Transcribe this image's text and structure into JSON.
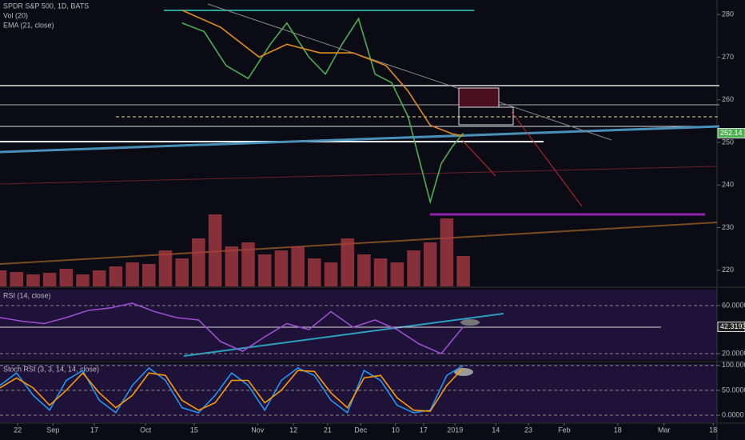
{
  "chart_data": [
    {
      "type": "line",
      "title": "SPDR S&P 500, 1D, BATS",
      "last_price": 252.14,
      "xlim": [
        0,
        130
      ],
      "ylim": [
        216.2,
        283.4
      ],
      "xticks": [
        {
          "value": 3.2,
          "label": "22"
        },
        {
          "value": 9.6,
          "label": "Sep"
        },
        {
          "value": 17.1,
          "label": "17"
        },
        {
          "value": 26.4,
          "label": "Oct"
        },
        {
          "value": 35.2,
          "label": "15"
        },
        {
          "value": 46.7,
          "label": "Nov"
        },
        {
          "value": 53.2,
          "label": "12"
        },
        {
          "value": 59.4,
          "label": "21"
        },
        {
          "value": 65.4,
          "label": "Dec"
        },
        {
          "value": 71.7,
          "label": "10"
        },
        {
          "value": 76.8,
          "label": "17"
        },
        {
          "value": 82.5,
          "label": "2019"
        },
        {
          "value": 89.9,
          "label": "14"
        },
        {
          "value": 95.8,
          "label": "23"
        },
        {
          "value": 102.3,
          "label": "Feb"
        },
        {
          "value": 112,
          "label": "18"
        },
        {
          "value": 120.4,
          "label": "Mar"
        },
        {
          "value": 129.3,
          "label": "18"
        }
      ],
      "yticks": [
        220,
        230,
        240,
        250,
        260,
        270,
        280
      ],
      "series": [
        {
          "color": "#4caf50",
          "x": [
            33,
            37,
            41,
            45,
            49,
            52,
            56,
            59,
            62,
            65,
            68,
            71,
            74,
            76,
            78,
            80,
            82,
            84
          ],
          "values": [
            278,
            276,
            268,
            265,
            273,
            278,
            270,
            266,
            273,
            279,
            266,
            264,
            256,
            246,
            236,
            245,
            249,
            252.14
          ]
        },
        {
          "name": "EMA (21, close)",
          "color": "#e08a1e",
          "x": [
            33,
            40,
            47,
            52,
            58,
            64,
            70,
            74,
            78,
            82,
            84
          ],
          "values": [
            281,
            277,
            270,
            273,
            271,
            271,
            268,
            262,
            254,
            252,
            251.5
          ]
        }
      ]
    },
    {
      "type": "bar",
      "title": "Vol (20)",
      "xlim": [
        0,
        130
      ],
      "ylim": [
        0,
        100
      ],
      "color": "#a83a44",
      "x": [
        0,
        3,
        6,
        9,
        12,
        15,
        18,
        21,
        24,
        27,
        30,
        33,
        36,
        39,
        42,
        45,
        48,
        51,
        54,
        57,
        60,
        63,
        66,
        69,
        72,
        75,
        78,
        81,
        84
      ],
      "values": [
        20,
        18,
        15,
        17,
        22,
        15,
        20,
        25,
        30,
        28,
        45,
        35,
        60,
        90,
        50,
        55,
        40,
        45,
        50,
        35,
        30,
        60,
        40,
        35,
        30,
        45,
        55,
        85,
        38
      ]
    },
    {
      "type": "line",
      "title": "RSI (14, close)",
      "last_value": 42.3193,
      "xlim": [
        0,
        130
      ],
      "ylim": [
        14.7,
        73.3
      ],
      "yticks": [
        {
          "value": 60,
          "label": "60.0000"
        },
        {
          "value": 20,
          "label": "20.0000"
        }
      ],
      "series": [
        {
          "color": "#9c4fd0",
          "x": [
            0,
            4,
            8,
            12,
            16,
            20,
            24,
            28,
            32,
            36,
            40,
            44,
            48,
            52,
            56,
            60,
            64,
            68,
            72,
            76,
            80,
            84
          ],
          "values": [
            50,
            47,
            45,
            50,
            56,
            58,
            62,
            55,
            50,
            48,
            30,
            22,
            34,
            45,
            40,
            55,
            42,
            48,
            40,
            28,
            20,
            42.3193
          ]
        }
      ]
    },
    {
      "type": "line",
      "title": "Stoch RSI (3, 3, 14, 14, close)",
      "xlim": [
        0,
        130
      ],
      "ylim": [
        -14.5,
        103
      ],
      "yticks": [
        {
          "value": 100,
          "label": "100.0000"
        },
        {
          "value": 50,
          "label": "50.0000"
        },
        {
          "value": 0,
          "label": "0.0000"
        }
      ],
      "series": [
        {
          "color": "#2196f3",
          "x": [
            0,
            3,
            6,
            9,
            12,
            15,
            18,
            21,
            24,
            27,
            30,
            33,
            36,
            39,
            42,
            45,
            48,
            51,
            54,
            57,
            60,
            63,
            66,
            69,
            72,
            75,
            78,
            81,
            84
          ],
          "values": [
            60,
            85,
            40,
            10,
            70,
            90,
            30,
            5,
            60,
            95,
            70,
            15,
            5,
            40,
            85,
            60,
            10,
            70,
            95,
            80,
            30,
            5,
            90,
            70,
            20,
            5,
            10,
            80,
            100
          ]
        },
        {
          "color": "#ff9800",
          "x": [
            0,
            3,
            6,
            9,
            12,
            15,
            18,
            21,
            24,
            27,
            30,
            33,
            36,
            39,
            42,
            45,
            48,
            51,
            54,
            57,
            60,
            63,
            66,
            69,
            72,
            75,
            78,
            81,
            84
          ],
          "values": [
            55,
            75,
            55,
            20,
            50,
            85,
            45,
            15,
            40,
            85,
            80,
            30,
            10,
            25,
            70,
            70,
            25,
            50,
            90,
            88,
            45,
            15,
            75,
            80,
            35,
            10,
            8,
            60,
            95
          ]
        }
      ]
    }
  ]
}
